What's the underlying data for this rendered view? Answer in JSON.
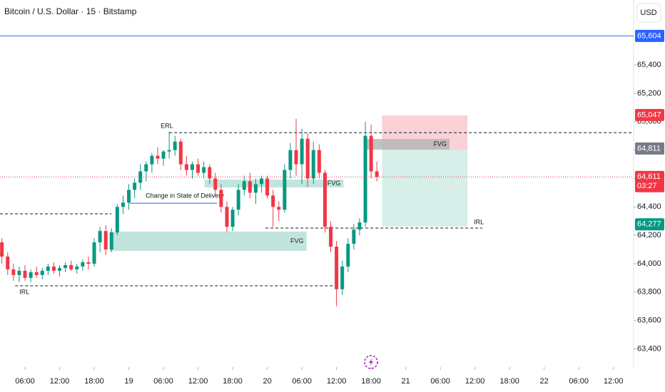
{
  "chart_data": {
    "type": "candlestick",
    "title": "Bitcoin / U.S. Dollar · 15 · Bitstamp",
    "currency": "USD",
    "up_color": "#089981",
    "down_color": "#f23645",
    "xlim": [
      1.67,
      111.5
    ],
    "ylim": [
      63272,
      65857
    ],
    "xticks": [
      {
        "value": 6,
        "label": "06:00"
      },
      {
        "value": 12,
        "label": "12:00"
      },
      {
        "value": 18,
        "label": "18:00"
      },
      {
        "value": 24,
        "label": "19"
      },
      {
        "value": 30,
        "label": "06:00"
      },
      {
        "value": 36,
        "label": "12:00"
      },
      {
        "value": 42,
        "label": "18:00"
      },
      {
        "value": 48,
        "label": "20"
      },
      {
        "value": 54,
        "label": "06:00"
      },
      {
        "value": 60,
        "label": "12:00"
      },
      {
        "value": 66,
        "label": "18:00"
      },
      {
        "value": 72,
        "label": "21"
      },
      {
        "value": 78,
        "label": "06:00"
      },
      {
        "value": 84,
        "label": "12:00"
      },
      {
        "value": 90,
        "label": "18:00"
      },
      {
        "value": 96,
        "label": "22"
      },
      {
        "value": 102,
        "label": "06:00"
      },
      {
        "value": 108,
        "label": "12:00"
      }
    ],
    "yticks": [
      {
        "value": 63400,
        "label": "63,400"
      },
      {
        "value": 63600,
        "label": "63,600"
      },
      {
        "value": 63800,
        "label": "63,800"
      },
      {
        "value": 64000,
        "label": "64,000"
      },
      {
        "value": 64200,
        "label": "64,200"
      },
      {
        "value": 64400,
        "label": "64,400"
      },
      {
        "value": 64600,
        "label": "64,600"
      },
      {
        "value": 64800,
        "label": "64,800"
      },
      {
        "value": 65000,
        "label": "65,000"
      },
      {
        "value": 65200,
        "label": "65,200"
      },
      {
        "value": 65400,
        "label": "65,400"
      }
    ],
    "x": [
      2,
      3,
      4,
      5,
      6,
      7,
      8,
      9,
      10,
      11,
      12,
      13,
      14,
      15,
      16,
      17,
      18,
      19,
      20,
      21,
      22,
      23,
      24,
      25,
      26,
      27,
      28,
      29,
      30,
      31,
      32,
      33,
      34,
      35,
      36,
      37,
      38,
      39,
      40,
      41,
      42,
      43,
      44,
      45,
      46,
      47,
      48,
      49,
      50,
      51,
      52,
      53,
      54,
      55,
      56,
      57,
      58,
      59,
      60,
      61,
      62,
      63,
      64,
      65,
      66,
      67
    ],
    "open": [
      64150,
      64050,
      63960,
      63920,
      63950,
      63900,
      63940,
      63920,
      63950,
      63980,
      63950,
      63970,
      63990,
      63960,
      63980,
      64010,
      64000,
      64150,
      64230,
      64100,
      64220,
      64400,
      64430,
      64520,
      64570,
      64650,
      64700,
      64760,
      64740,
      64790,
      64800,
      64860,
      64700,
      64660,
      64700,
      64640,
      64680,
      64600,
      64520,
      64400,
      64260,
      64380,
      64520,
      64580,
      64500,
      64560,
      64600,
      64480,
      64400,
      64380,
      64660,
      64800,
      64700,
      64880,
      64600,
      64800,
      64640,
      64260,
      64120,
      63820,
      63980,
      64140,
      64240,
      64290,
      64900,
      64650
    ],
    "high": [
      64180,
      64080,
      64000,
      63980,
      63990,
      63960,
      63980,
      63970,
      64000,
      64010,
      63990,
      64010,
      64020,
      64000,
      64030,
      64050,
      64180,
      64260,
      64270,
      64250,
      64420,
      64480,
      64560,
      64600,
      64700,
      64720,
      64780,
      64820,
      64800,
      64930,
      64900,
      64880,
      64760,
      64720,
      64740,
      64720,
      64700,
      64640,
      64560,
      64440,
      64400,
      64560,
      64620,
      64640,
      64600,
      64620,
      64620,
      64520,
      64440,
      64700,
      64850,
      65020,
      64950,
      64920,
      64860,
      64840,
      64660,
      64300,
      64160,
      64020,
      64180,
      64280,
      64320,
      65000,
      64980,
      64720
    ],
    "low": [
      64000,
      63920,
      63880,
      63870,
      63880,
      63870,
      63900,
      63890,
      63920,
      63930,
      63910,
      63940,
      63950,
      63930,
      63950,
      63960,
      63980,
      64080,
      64060,
      64080,
      64200,
      64350,
      64380,
      64460,
      64520,
      64580,
      64640,
      64700,
      64690,
      64740,
      64760,
      64660,
      64620,
      64600,
      64620,
      64600,
      64560,
      64480,
      64360,
      64220,
      64230,
      64340,
      64480,
      64460,
      64420,
      64500,
      64460,
      64260,
      64300,
      64360,
      64600,
      64620,
      64560,
      64540,
      64560,
      64600,
      64220,
      64080,
      63700,
      63780,
      63940,
      64100,
      64200,
      64260,
      64600,
      64580
    ],
    "close": [
      64050,
      63960,
      63920,
      63950,
      63900,
      63940,
      63920,
      63950,
      63980,
      63950,
      63970,
      63990,
      63960,
      63980,
      64010,
      64000,
      64150,
      64230,
      64100,
      64220,
      64400,
      64430,
      64520,
      64570,
      64650,
      64700,
      64760,
      64740,
      64790,
      64800,
      64860,
      64700,
      64660,
      64700,
      64640,
      64680,
      64600,
      64520,
      64400,
      64260,
      64380,
      64520,
      64580,
      64500,
      64560,
      64600,
      64480,
      64400,
      64380,
      64660,
      64800,
      64700,
      64880,
      64600,
      64800,
      64640,
      64260,
      64120,
      63820,
      63980,
      64140,
      64240,
      64290,
      64900,
      64650,
      64611
    ],
    "zones": [
      {
        "x": [
          20.7,
          54.8
        ],
        "y": [
          64090,
          64226
        ],
        "color": "#b2dfd5",
        "label": "FVG"
      },
      {
        "x": [
          37.1,
          61.2
        ],
        "y": [
          64537,
          64592
        ],
        "color": "#b2dfd5",
        "label": "FVG"
      },
      {
        "x": [
          67.9,
          82.7
        ],
        "y": [
          64803,
          65044
        ],
        "color": "#f7c6cc"
      },
      {
        "x": [
          67.9,
          82.7
        ],
        "y": [
          64261,
          64803
        ],
        "color": "#cdeae3"
      },
      {
        "x": [
          65.3,
          79.6
        ],
        "y": [
          64803,
          64878
        ],
        "color": "#b3b3b3",
        "label": "FVG"
      }
    ],
    "levels": [
      {
        "x": [
          31,
          111.5
        ],
        "value": 64923,
        "label": "ERL"
      },
      {
        "x": [
          1.67,
          21
        ],
        "value": 64351
      },
      {
        "x": [
          4.3,
          59.5
        ],
        "value": 63844,
        "label": "IRL"
      },
      {
        "x": [
          47.7,
          85.3
        ],
        "value": 64251,
        "label": "IRL"
      }
    ],
    "annotation": {
      "text": "Change in State of Delivery",
      "x": [
        24.2,
        39.3
      ],
      "value": 64426
    },
    "price_markers": [
      {
        "value": 65604,
        "label": "65,604",
        "color": "#2962ff"
      },
      {
        "value": 65047,
        "label": "65,047",
        "color": "#f23645"
      },
      {
        "value": 64811,
        "label": "64,811",
        "color": "#787b86"
      },
      {
        "value": 64611,
        "label": "64,611",
        "color": "#f23645",
        "countdown": "03:27"
      },
      {
        "value": 64277,
        "label": "64,277",
        "color": "#089981"
      }
    ]
  }
}
